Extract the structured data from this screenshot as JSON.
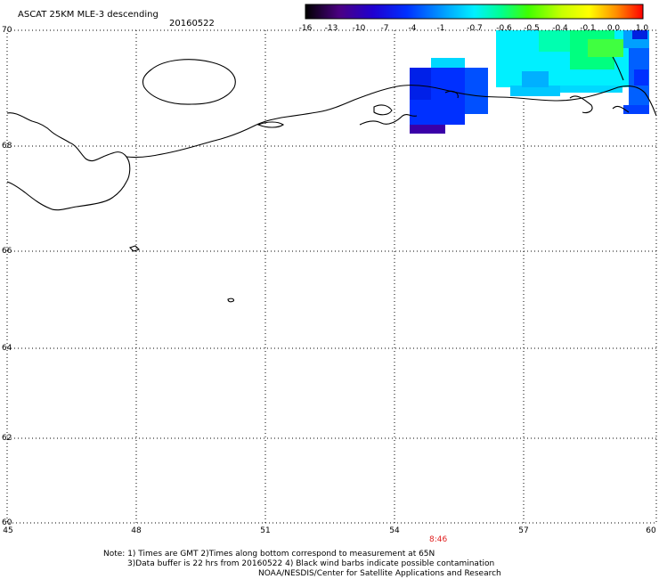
{
  "header": {
    "title": "ASCAT 25KM MLE-3 descending",
    "date": "20160522"
  },
  "colorbar": {
    "tick_labels": [
      "-16",
      "-13",
      "-10",
      "-7",
      "-4",
      "-1",
      "-0.7",
      "-0.6",
      "-0.5",
      "-0.4",
      "-0.1",
      "0.0",
      "1.0"
    ],
    "colors": [
      "#000000",
      "#5a00a0",
      "#0000ff",
      "#0078ff",
      "#00d8ff",
      "#00ff78",
      "#28ff00",
      "#b4ff00",
      "#ffff00",
      "#ffa000",
      "#ff4000",
      "#ff0000"
    ]
  },
  "axes": {
    "lat_labels": [
      "70",
      "68",
      "66",
      "64",
      "62",
      "60"
    ],
    "lon_labels": [
      "45",
      "48",
      "51",
      "54",
      "57",
      "60"
    ]
  },
  "time_label": "8:46",
  "notes": {
    "line1": "Note: 1) Times are GMT 2)Times along bottom correspond to measurement at 65N",
    "line2": "3)Data buffer is 22 hrs from 20160522 4) Black wind barbs indicate possible contamination",
    "line3": "NOAA/NESDIS/Center for Satellite Applications and Research"
  }
}
